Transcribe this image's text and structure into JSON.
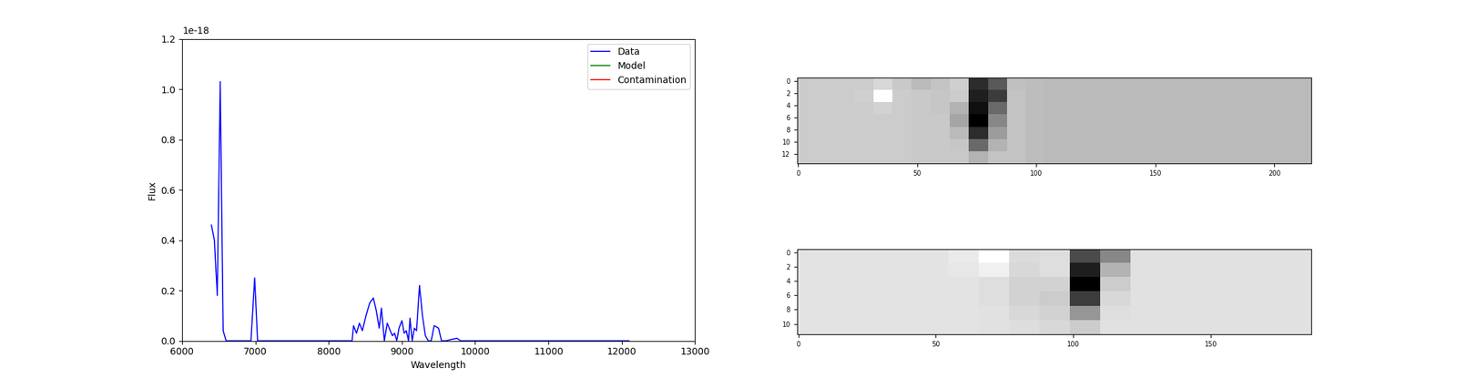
{
  "chart_data": [
    {
      "type": "line",
      "xlabel": "Wavelength",
      "ylabel": "Flux",
      "annotations": [
        "1e-18"
      ],
      "xlim": [
        6000,
        13000
      ],
      "xticks": [
        6000,
        7000,
        8000,
        9000,
        10000,
        11000,
        12000,
        13000
      ],
      "ylim": [
        0,
        1.2
      ],
      "yticks": [
        {
          "value": 0,
          "label": "0.0"
        },
        0.2,
        0.4,
        0.6,
        0.8,
        {
          "value": 1,
          "label": "1.0"
        },
        1.2
      ],
      "legend": "upper right",
      "x": [
        6400,
        6440,
        6480,
        6520,
        6560,
        6600,
        6940,
        6990,
        7030,
        8320,
        8340,
        8380,
        8420,
        8460,
        8510,
        8560,
        8610,
        8650,
        8690,
        8720,
        8760,
        8800,
        8840,
        8870,
        8900,
        8930,
        8960,
        9000,
        9030,
        9060,
        9090,
        9110,
        9140,
        9170,
        9200,
        9240,
        9280,
        9320,
        9360,
        9400,
        9440,
        9500,
        9540,
        9600,
        9750,
        9800,
        12100
      ],
      "series": [
        {
          "name": "Data",
          "color": "blue",
          "values": [
            0.46,
            0.4,
            0.18,
            1.03,
            0.04,
            0,
            0,
            0.25,
            0,
            0,
            0.06,
            0.03,
            0.07,
            0.04,
            0.1,
            0.15,
            0.17,
            0.12,
            0.05,
            0.13,
            0,
            0.07,
            0.04,
            0.02,
            0.03,
            0,
            0.05,
            0.08,
            0.03,
            0.04,
            0,
            0.09,
            0,
            0.05,
            0.04,
            0.22,
            0.1,
            0.02,
            0,
            0,
            0.06,
            0.05,
            0,
            0,
            0.01,
            0,
            0
          ]
        },
        {
          "name": "Model",
          "color": "green",
          "values": [
            null,
            null,
            null,
            null,
            null,
            null,
            null,
            null,
            null,
            null,
            null,
            null,
            null,
            null,
            null,
            null,
            null,
            null,
            null,
            null,
            null,
            null,
            null,
            null,
            null,
            null,
            null,
            null,
            null,
            null,
            null,
            null,
            null,
            null,
            null,
            null,
            null,
            null,
            null,
            null,
            null,
            null,
            null,
            null,
            null,
            null,
            null
          ]
        },
        {
          "name": "Contamination",
          "color": "red",
          "values": [
            null,
            null,
            null,
            null,
            null,
            null,
            null,
            null,
            null,
            null,
            null,
            null,
            null,
            null,
            null,
            null,
            null,
            null,
            null,
            null,
            null,
            null,
            null,
            null,
            null,
            null,
            null,
            null,
            null,
            null,
            null,
            null,
            null,
            null,
            null,
            null,
            null,
            null,
            null,
            null,
            null,
            null,
            null,
            null,
            null,
            null,
            null
          ]
        }
      ]
    },
    {
      "type": "heatmap",
      "xlim": [
        -0.5,
        215.5
      ],
      "xticks": [
        0,
        50,
        100,
        150,
        200
      ],
      "ylim": [
        13.5,
        -0.5
      ],
      "yticks": [
        0,
        2,
        4,
        6,
        8,
        10,
        12
      ],
      "cells": [
        [
          0.78,
          0.78,
          0.78,
          0.78,
          0.82,
          0.77,
          0.72,
          0.75,
          0.79,
          0.25,
          0.4,
          0.74,
          0.73,
          0.72,
          0.72,
          0.72,
          0.72,
          0.72,
          0.72,
          0.72,
          0.72,
          0.72,
          0.72,
          0.72,
          0.72,
          0.72,
          0.72
        ],
        [
          0.78,
          0.78,
          0.78,
          0.79,
          0.95,
          0.78,
          0.77,
          0.76,
          0.78,
          0.2,
          0.3,
          0.75,
          0.73,
          0.72,
          0.72,
          0.72,
          0.72,
          0.72,
          0.72,
          0.72,
          0.72,
          0.72,
          0.72,
          0.72,
          0.72,
          0.72,
          0.72
        ],
        [
          0.78,
          0.78,
          0.78,
          0.78,
          0.8,
          0.78,
          0.77,
          0.76,
          0.7,
          0.15,
          0.45,
          0.75,
          0.73,
          0.72,
          0.72,
          0.72,
          0.72,
          0.72,
          0.72,
          0.72,
          0.72,
          0.72,
          0.72,
          0.72,
          0.72,
          0.72,
          0.72
        ],
        [
          0.78,
          0.78,
          0.78,
          0.78,
          0.78,
          0.78,
          0.77,
          0.77,
          0.65,
          0.1,
          0.55,
          0.75,
          0.73,
          0.72,
          0.72,
          0.72,
          0.72,
          0.72,
          0.72,
          0.72,
          0.72,
          0.72,
          0.72,
          0.72,
          0.72,
          0.72,
          0.72
        ],
        [
          0.78,
          0.78,
          0.78,
          0.78,
          0.78,
          0.78,
          0.77,
          0.77,
          0.72,
          0.25,
          0.62,
          0.75,
          0.73,
          0.72,
          0.72,
          0.72,
          0.72,
          0.72,
          0.72,
          0.72,
          0.72,
          0.72,
          0.72,
          0.72,
          0.72,
          0.72,
          0.72
        ],
        [
          0.78,
          0.78,
          0.78,
          0.78,
          0.78,
          0.78,
          0.77,
          0.77,
          0.76,
          0.45,
          0.7,
          0.75,
          0.73,
          0.72,
          0.72,
          0.72,
          0.72,
          0.72,
          0.72,
          0.72,
          0.72,
          0.72,
          0.72,
          0.72,
          0.72,
          0.72,
          0.72
        ],
        [
          0.78,
          0.78,
          0.78,
          0.78,
          0.78,
          0.78,
          0.77,
          0.77,
          0.77,
          0.7,
          0.75,
          0.75,
          0.73,
          0.72,
          0.72,
          0.72,
          0.72,
          0.72,
          0.72,
          0.72,
          0.72,
          0.72,
          0.72,
          0.72,
          0.72,
          0.72,
          0.72
        ]
      ]
    },
    {
      "type": "heatmap",
      "xlim": [
        -0.5,
        186.5
      ],
      "xticks": [
        0,
        50,
        100,
        150
      ],
      "ylim": [
        11.5,
        -0.5
      ],
      "yticks": [
        0,
        2,
        4,
        6,
        8,
        10
      ],
      "cells": [
        [
          0.86,
          0.86,
          0.86,
          0.86,
          0.86,
          0.88,
          0.95,
          0.83,
          0.84,
          0.35,
          0.55,
          0.85,
          0.85,
          0.85,
          0.85,
          0.85,
          0.85
        ],
        [
          0.86,
          0.86,
          0.86,
          0.86,
          0.86,
          0.87,
          0.9,
          0.82,
          0.84,
          0.2,
          0.7,
          0.85,
          0.85,
          0.85,
          0.85,
          0.85,
          0.85
        ],
        [
          0.86,
          0.86,
          0.86,
          0.86,
          0.86,
          0.86,
          0.84,
          0.8,
          0.8,
          0.1,
          0.78,
          0.85,
          0.85,
          0.85,
          0.85,
          0.85,
          0.85
        ],
        [
          0.86,
          0.86,
          0.86,
          0.86,
          0.86,
          0.86,
          0.84,
          0.8,
          0.78,
          0.3,
          0.82,
          0.85,
          0.85,
          0.85,
          0.85,
          0.85,
          0.85
        ],
        [
          0.86,
          0.86,
          0.86,
          0.86,
          0.86,
          0.86,
          0.85,
          0.82,
          0.8,
          0.6,
          0.84,
          0.85,
          0.85,
          0.85,
          0.85,
          0.85,
          0.85
        ],
        [
          0.86,
          0.86,
          0.86,
          0.86,
          0.86,
          0.86,
          0.85,
          0.84,
          0.82,
          0.78,
          0.85,
          0.85,
          0.85,
          0.85,
          0.85,
          0.85,
          0.85
        ]
      ]
    }
  ]
}
